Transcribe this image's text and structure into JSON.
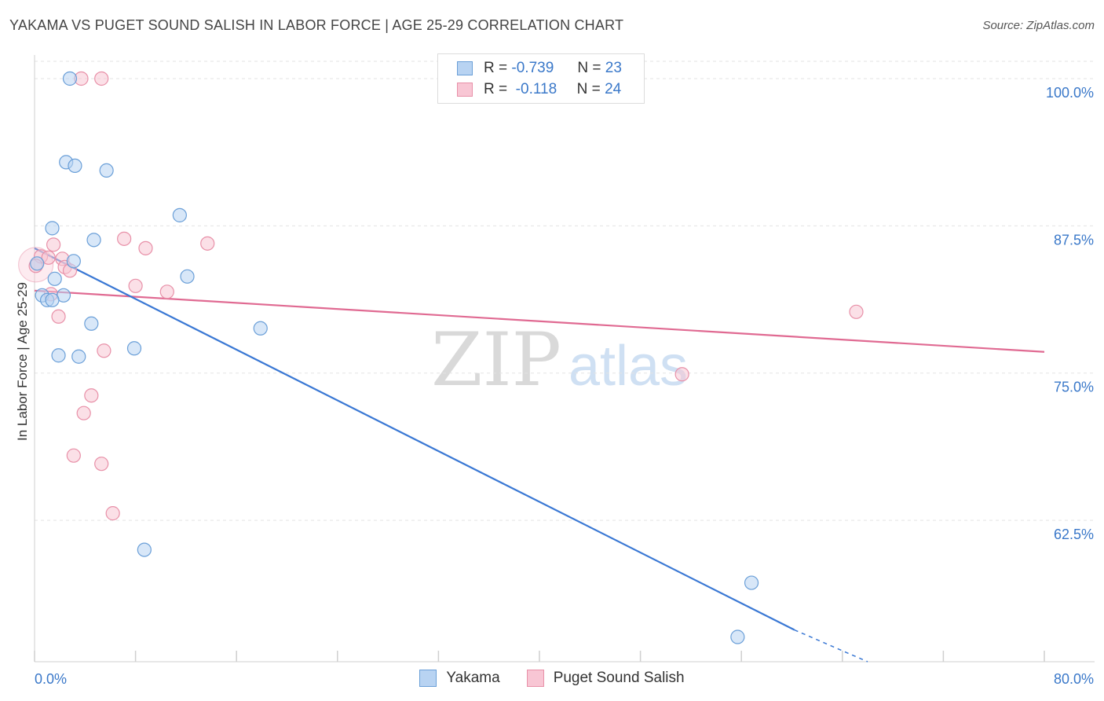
{
  "header": {
    "title": "YAKAMA VS PUGET SOUND SALISH IN LABOR FORCE | AGE 25-29 CORRELATION CHART",
    "source": "Source: ZipAtlas.com"
  },
  "watermark": {
    "zip": "ZIP",
    "atlas": "atlas"
  },
  "legend_top": {
    "rows": [
      {
        "r_label": "R =",
        "r_value": "-0.739",
        "n_label": "N =",
        "n_value": "23"
      },
      {
        "r_label": "R =",
        "r_value": "-0.118",
        "n_label": "N =",
        "n_value": "24"
      }
    ]
  },
  "colors": {
    "yakama_fill": "#b8d3f2",
    "yakama_stroke": "#6a9fd8",
    "yakama_line": "#3a78d4",
    "puget_fill": "#f8c6d4",
    "puget_stroke": "#e890a8",
    "puget_line": "#e06a92",
    "grid": "#e3e3e3",
    "tick_label": "#3a78c9"
  },
  "chart_data": {
    "type": "scatter",
    "title": "YAKAMA VS PUGET SOUND SALISH IN LABOR FORCE | AGE 25-29 CORRELATION CHART",
    "xlabel": "",
    "ylabel": "In Labor Force | Age 25-29",
    "xlim": [
      0,
      80
    ],
    "ylim": [
      50.5,
      102
    ],
    "x_tick_labels": [
      {
        "value": 0,
        "label": "0.0%"
      },
      {
        "value": 80,
        "label": "80.0%"
      }
    ],
    "y_ticks": [
      {
        "value": 100,
        "label": "100.0%"
      },
      {
        "value": 87.5,
        "label": "87.5%"
      },
      {
        "value": 75,
        "label": "75.0%"
      },
      {
        "value": 62.5,
        "label": "62.5%"
      }
    ],
    "series": [
      {
        "name": "Yakama",
        "R": -0.739,
        "N": 23,
        "points": [
          [
            2.8,
            100
          ],
          [
            2.5,
            92.9
          ],
          [
            3.2,
            92.6
          ],
          [
            5.7,
            92.2
          ],
          [
            11.5,
            88.4
          ],
          [
            1.4,
            87.3
          ],
          [
            4.7,
            86.3
          ],
          [
            3.1,
            84.5
          ],
          [
            0.2,
            84.3
          ],
          [
            12.1,
            83.2
          ],
          [
            1.6,
            83.0
          ],
          [
            0.6,
            81.6
          ],
          [
            2.3,
            81.6
          ],
          [
            1.0,
            81.2
          ],
          [
            1.4,
            81.2
          ],
          [
            4.5,
            79.2
          ],
          [
            17.9,
            78.8
          ],
          [
            7.9,
            77.1
          ],
          [
            1.9,
            76.5
          ],
          [
            3.5,
            76.4
          ],
          [
            8.7,
            60.0
          ],
          [
            56.8,
            57.2
          ],
          [
            55.7,
            52.6
          ]
        ],
        "trend": {
          "x1": 0,
          "y1": 85.6,
          "x2": 60.2,
          "y2": 53.2,
          "dash_to_x": 66,
          "dash_to_y": 50.5
        }
      },
      {
        "name": "Puget Sound Salish",
        "R": -0.118,
        "N": 24,
        "points": [
          [
            3.7,
            100
          ],
          [
            5.3,
            100
          ],
          [
            7.1,
            86.4
          ],
          [
            8.8,
            85.6
          ],
          [
            13.7,
            86.0
          ],
          [
            1.5,
            85.9
          ],
          [
            0.5,
            84.9
          ],
          [
            1.1,
            84.8
          ],
          [
            2.2,
            84.7
          ],
          [
            2.4,
            84.0
          ],
          [
            2.8,
            83.7
          ],
          [
            0.1,
            84.1
          ],
          [
            8.0,
            82.4
          ],
          [
            10.5,
            81.9
          ],
          [
            1.3,
            81.7
          ],
          [
            1.9,
            79.8
          ],
          [
            5.5,
            76.9
          ],
          [
            4.5,
            73.1
          ],
          [
            3.9,
            71.6
          ],
          [
            3.1,
            68.0
          ],
          [
            5.3,
            67.3
          ],
          [
            6.2,
            63.1
          ],
          [
            51.3,
            74.9
          ],
          [
            65.1,
            80.2
          ]
        ],
        "trend": {
          "x1": 0,
          "y1": 82.0,
          "x2": 80,
          "y2": 76.8
        }
      }
    ]
  }
}
